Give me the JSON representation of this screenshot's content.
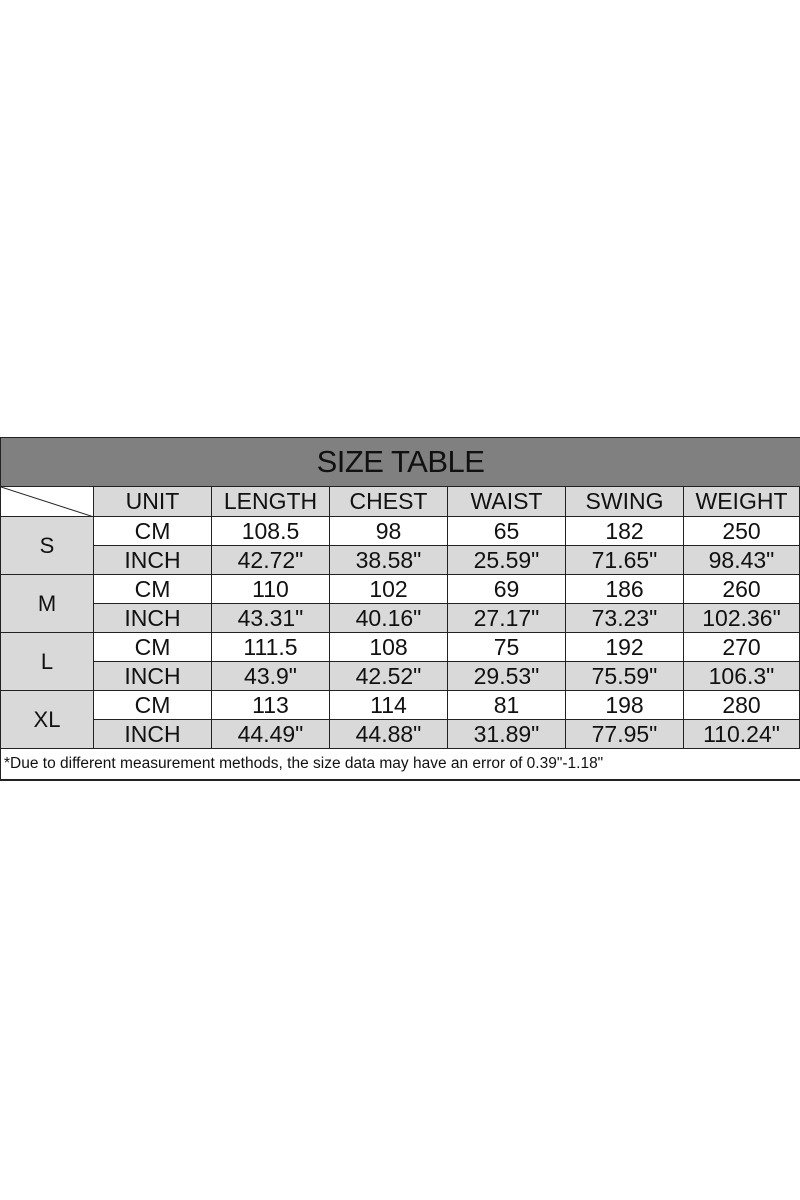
{
  "title": "SIZE TABLE",
  "headers": [
    "UNIT",
    "LENGTH",
    "CHEST",
    "WAIST",
    "SWING",
    "WEIGHT"
  ],
  "rows": [
    {
      "size": "S",
      "cm": [
        "CM",
        "108.5",
        "98",
        "65",
        "182",
        "250"
      ],
      "inch": [
        "INCH",
        "42.72\"",
        "38.58\"",
        "25.59\"",
        "71.65\"",
        "98.43\""
      ]
    },
    {
      "size": "M",
      "cm": [
        "CM",
        "110",
        "102",
        "69",
        "186",
        "260"
      ],
      "inch": [
        "INCH",
        "43.31\"",
        "40.16\"",
        "27.17\"",
        "73.23\"",
        "102.36\""
      ]
    },
    {
      "size": "L",
      "cm": [
        "CM",
        "111.5",
        "108",
        "75",
        "192",
        "270"
      ],
      "inch": [
        "INCH",
        "43.9\"",
        "42.52\"",
        "29.53\"",
        "75.59\"",
        "106.3\""
      ]
    },
    {
      "size": "XL",
      "cm": [
        "CM",
        "113",
        "114",
        "81",
        "198",
        "280"
      ],
      "inch": [
        "INCH",
        "44.49\"",
        "44.88\"",
        "31.89\"",
        "77.95\"",
        "110.24\""
      ]
    }
  ],
  "note": "*Due to different measurement methods, the size data may have an error of 0.39\"-1.18\""
}
